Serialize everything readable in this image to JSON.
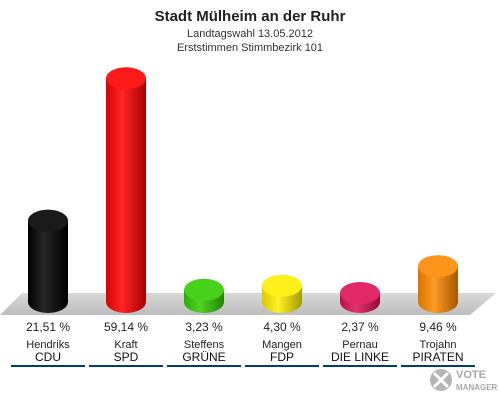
{
  "header": {
    "title": "Stadt Mülheim an der Ruhr",
    "subtitle": "Landtagswahl 13.05.2012",
    "subtitle2": "Erststimmen Stimmbezirk 101"
  },
  "logo": {
    "line1": "VOTE",
    "line2": "MANAGER"
  },
  "chart_data": {
    "type": "bar",
    "title": "Stadt Mülheim an der Ruhr",
    "subtitle": "Landtagswahl 13.05.2012 — Erststimmen Stimmbezirk 101",
    "categories": [
      "CDU",
      "SPD",
      "GRÜNE",
      "FDP",
      "DIE LINKE",
      "PIRATEN"
    ],
    "candidates": [
      "Hendriks",
      "Kraft",
      "Steffens",
      "Mangen",
      "Pernau",
      "Trojahn"
    ],
    "values": [
      21.51,
      59.14,
      3.23,
      4.3,
      2.37,
      9.46
    ],
    "value_labels": [
      "21,51 %",
      "59,14 %",
      "3,23 %",
      "4,30 %",
      "2,37 %",
      "9,46 %"
    ],
    "colors": [
      "#000000",
      "#ff0000",
      "#33cc00",
      "#ffee00",
      "#dd1155",
      "#ff8800"
    ],
    "ylim": [
      0,
      60
    ],
    "grid": false,
    "legend": "none"
  }
}
